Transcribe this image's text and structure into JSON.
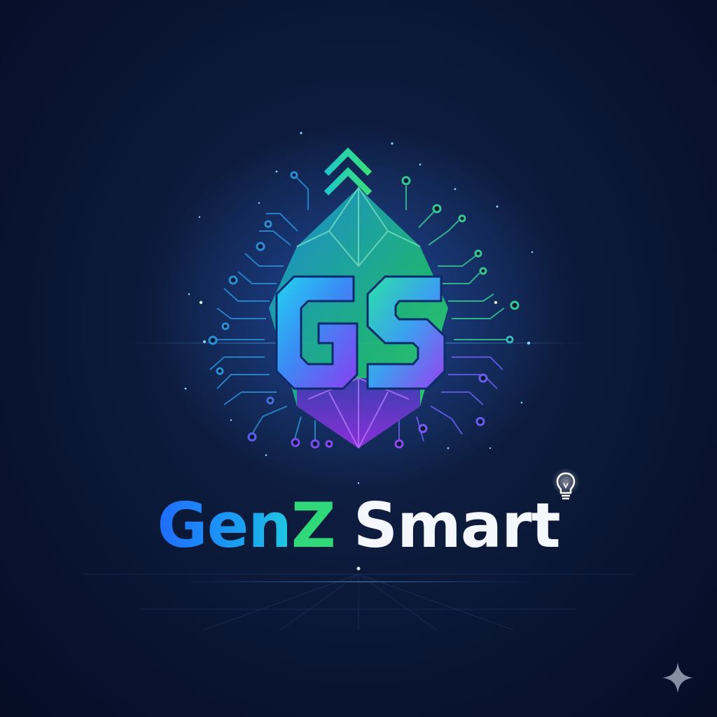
{
  "logo": {
    "monogram_text": "GS",
    "wordmark_part1": "Gen",
    "wordmark_part2": "Z",
    "wordmark_part3": "Smart"
  },
  "colors": {
    "background": "#0b1733",
    "accent_blue": "#1f6bff",
    "accent_cyan": "#22c9e0",
    "accent_green": "#2fd97a",
    "accent_purple": "#8b3df0",
    "wordmark_white": "#f4f7fb"
  },
  "icons": {
    "emblem": "gem-circuit-emblem",
    "arrows": "double-chevron-up-icon",
    "bulb": "lightbulb-icon",
    "sparkle": "sparkle-icon"
  }
}
